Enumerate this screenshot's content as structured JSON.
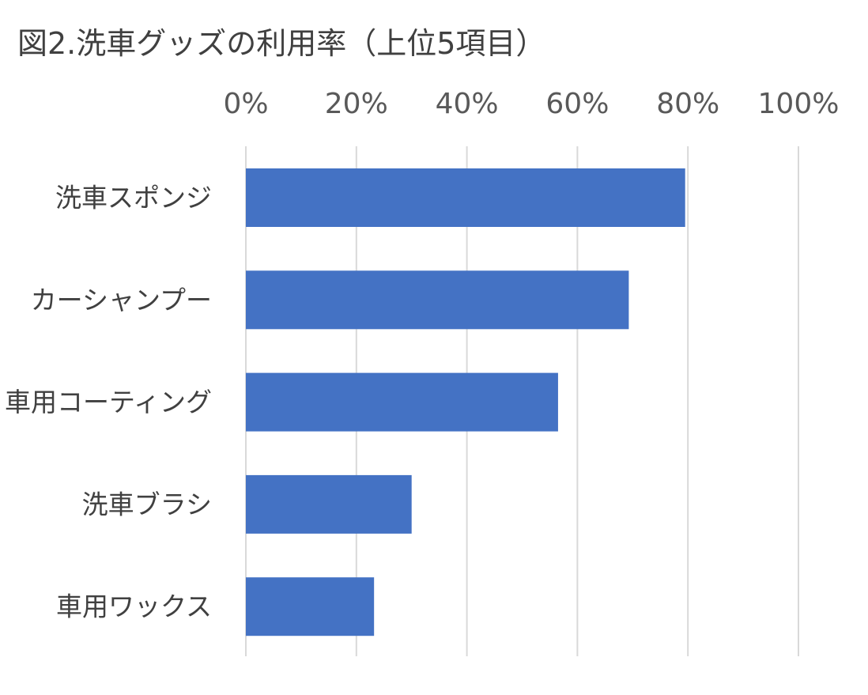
{
  "chart_data": {
    "type": "bar",
    "orientation": "horizontal",
    "title": "図2.洗車グッズの利用率（上位5項目）",
    "categories": [
      "洗車スポンジ",
      "カーシャンプー",
      "車用コーティング",
      "洗車ブラシ",
      "車用ワックス"
    ],
    "series": [
      {
        "values": [
          79.5,
          69.3,
          56.5,
          30.0,
          23.2
        ]
      }
    ],
    "xlim": [
      0,
      100
    ],
    "x_ticks": [
      "0%",
      "20%",
      "40%",
      "60%",
      "80%",
      "100%"
    ],
    "x_tick_values": [
      0,
      20,
      40,
      60,
      80,
      100
    ],
    "x_axis_position": "top",
    "grid": true,
    "legend": "none",
    "bar_color": "#4472C4"
  }
}
